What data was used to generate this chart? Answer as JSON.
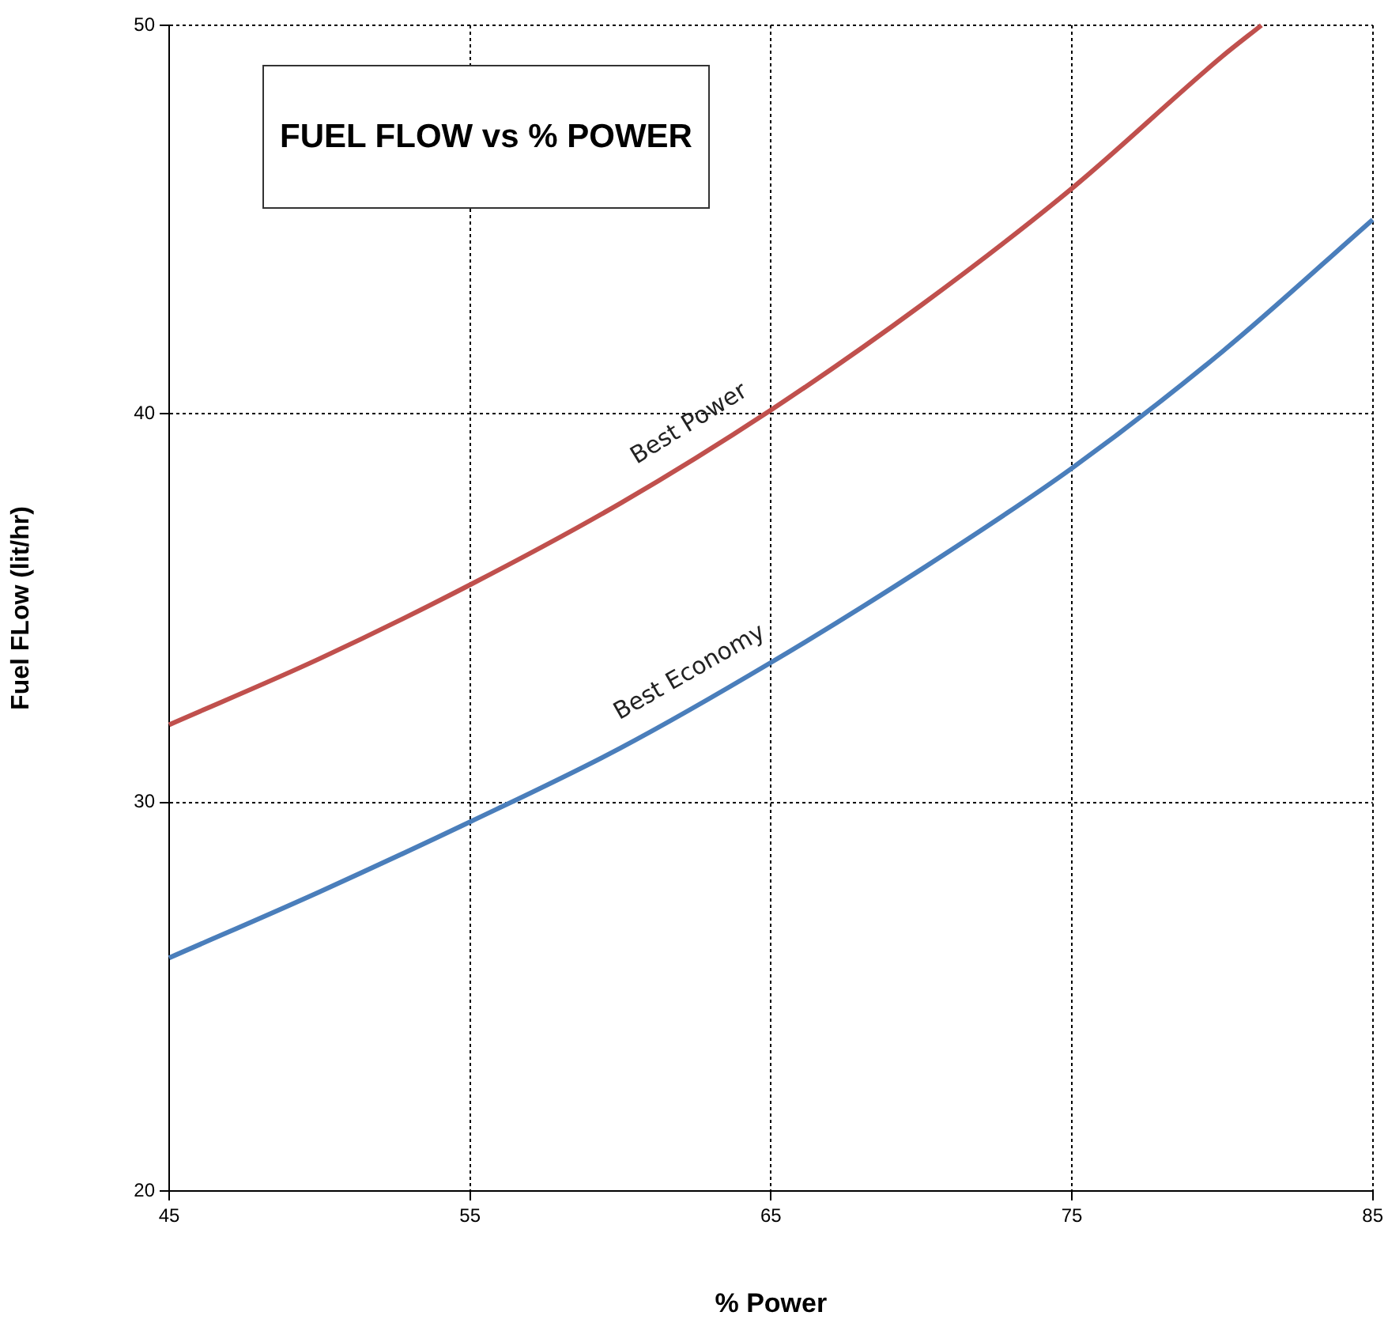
{
  "chart_data": {
    "type": "line",
    "title": "FUEL FLOW vs % POWER",
    "xlabel": "% Power",
    "ylabel": "Fuel FLow (lit/hr)",
    "xlim": [
      45,
      85
    ],
    "xticks": [
      45,
      55,
      65,
      75,
      85
    ],
    "ylim": [
      20,
      50
    ],
    "yticks": [
      20,
      30,
      40,
      50
    ],
    "grid": true,
    "legend": false,
    "marker": "none",
    "line_style": "solid",
    "series": [
      {
        "name": "Best Power",
        "color": "#c0504d",
        "x": [
          45,
          50,
          55,
          60,
          65,
          70,
          75,
          80,
          81.3
        ],
        "values": [
          32,
          33.7,
          35.6,
          37.7,
          40.1,
          42.8,
          45.8,
          49.2,
          50
        ]
      },
      {
        "name": "Best Economy",
        "color": "#4a7ebb",
        "x": [
          45,
          50,
          55,
          60,
          65,
          70,
          75,
          80,
          85
        ],
        "values": [
          26,
          27.7,
          29.5,
          31.4,
          33.6,
          36.0,
          38.6,
          41.6,
          45.0
        ]
      }
    ]
  }
}
